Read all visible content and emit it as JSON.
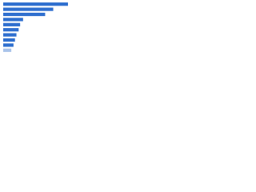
{
  "chart_data": {
    "type": "barh",
    "categories": [
      null,
      null,
      null,
      null,
      null,
      null,
      null,
      null,
      null,
      null
    ],
    "values": [
      88,
      68,
      57,
      27,
      23,
      21,
      18,
      16,
      14,
      11
    ],
    "colors": [
      "#2f6fcf",
      "#2f6fcf",
      "#2f6fcf",
      "#2f6fcf",
      "#2f6fcf",
      "#2f6fcf",
      "#2f6fcf",
      "#2f6fcf",
      "#2f6fcf",
      "#a9c3ea"
    ],
    "xlim": [
      0,
      100
    ]
  }
}
